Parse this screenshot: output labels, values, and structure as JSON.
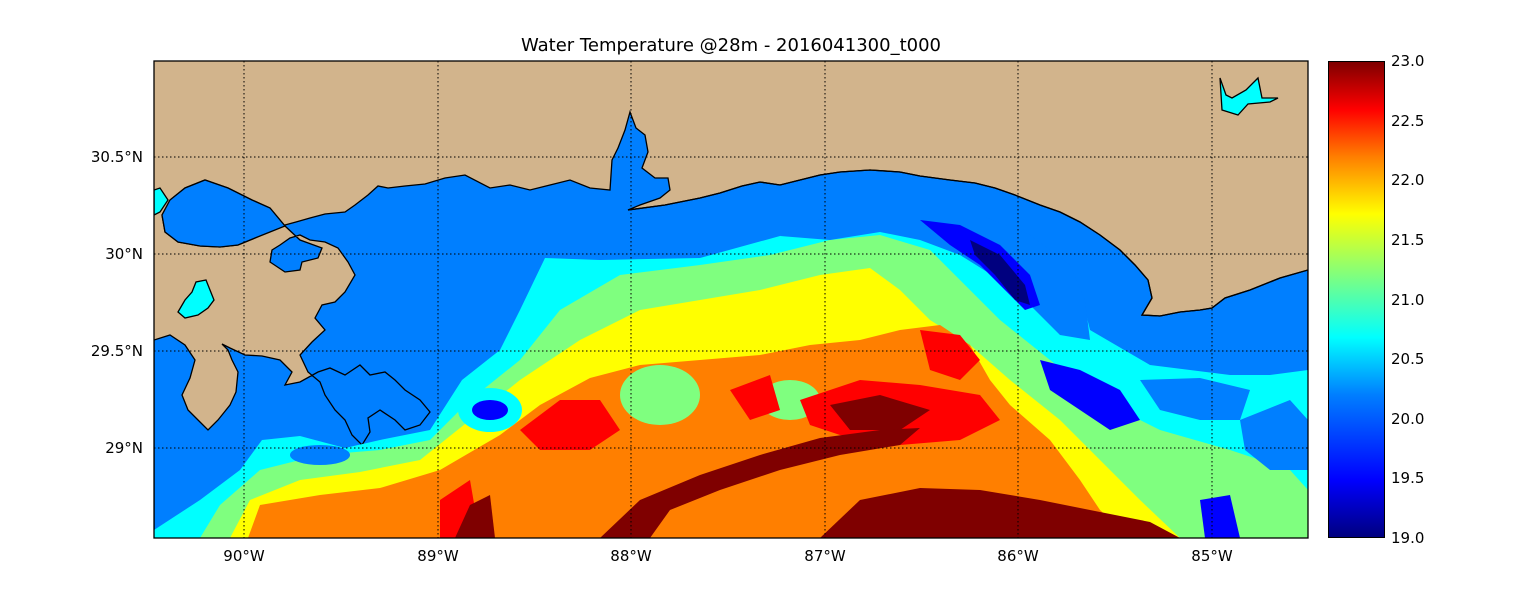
{
  "title": "Water Temperature @28m - 2016041300_t000",
  "x_ticks": [
    "90°W",
    "89°W",
    "88°W",
    "87°W",
    "86°W",
    "85°W"
  ],
  "y_ticks": [
    "30.5°N",
    "30°N",
    "29.5°N",
    "29°N"
  ],
  "colorbar": {
    "ticks": [
      "23.0",
      "22.5",
      "22.0",
      "21.5",
      "21.0",
      "20.5",
      "20.0",
      "19.5",
      "19.0"
    ],
    "min": 19.0,
    "max": 23.0
  },
  "colors": {
    "land": "#d2b48c",
    "water_fill": "#007fff",
    "inland_lakes": "#00ffff"
  }
}
